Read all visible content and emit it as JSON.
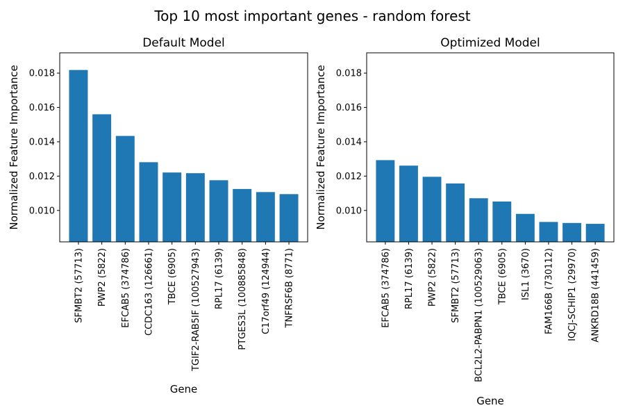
{
  "figure_title": "Top 10 most important genes - random forest",
  "colors": {
    "bar": "#1f77b4",
    "axis": "#000000",
    "background": "#ffffff"
  },
  "chart_data": [
    {
      "type": "bar",
      "title": "Default Model",
      "xlabel": "Gene",
      "ylabel": "Normalized Feature Importance",
      "grid": false,
      "ylim": [
        0.00817,
        0.01918
      ],
      "yticks": [
        0.01,
        0.012,
        0.014,
        0.016,
        0.018
      ],
      "ytick_labels": [
        "0.010",
        "0.012",
        "0.014",
        "0.016",
        "0.018"
      ],
      "categories": [
        "SFMBT2 (57713)",
        "PWP2 (5822)",
        "EFCAB5 (374786)",
        "CCDC163 (126661)",
        "TBCE (6905)",
        "TGIF2-RAB5IF (100527943)",
        "RPL17 (6139)",
        "PTGES3L (100885848)",
        "C17orf49 (124944)",
        "TNFRSF6B (8771)"
      ],
      "values": [
        0.01818,
        0.0156,
        0.01434,
        0.01281,
        0.01221,
        0.01217,
        0.01176,
        0.01125,
        0.01107,
        0.01095
      ]
    },
    {
      "type": "bar",
      "title": "Optimized Model",
      "xlabel": "Gene",
      "ylabel": "Normalized Feature Importance",
      "grid": false,
      "ylim": [
        0.00817,
        0.01918
      ],
      "yticks": [
        0.01,
        0.012,
        0.014,
        0.016,
        0.018
      ],
      "ytick_labels": [
        "0.010",
        "0.012",
        "0.014",
        "0.016",
        "0.018"
      ],
      "categories": [
        "EFCAB5 (374786)",
        "RPL17 (6139)",
        "PWP2 (5822)",
        "SFMBT2 (57713)",
        "BCL2L2-PABPN1 (100529063)",
        "TBCE (6905)",
        "ISL1 (3670)",
        "FAM166B (730112)",
        "IQCJ-SCHIP1 (29970)",
        "ANKRD18B (441459)"
      ],
      "values": [
        0.01293,
        0.01261,
        0.01196,
        0.01157,
        0.01071,
        0.01052,
        0.0098,
        0.00933,
        0.00927,
        0.00922
      ]
    }
  ]
}
